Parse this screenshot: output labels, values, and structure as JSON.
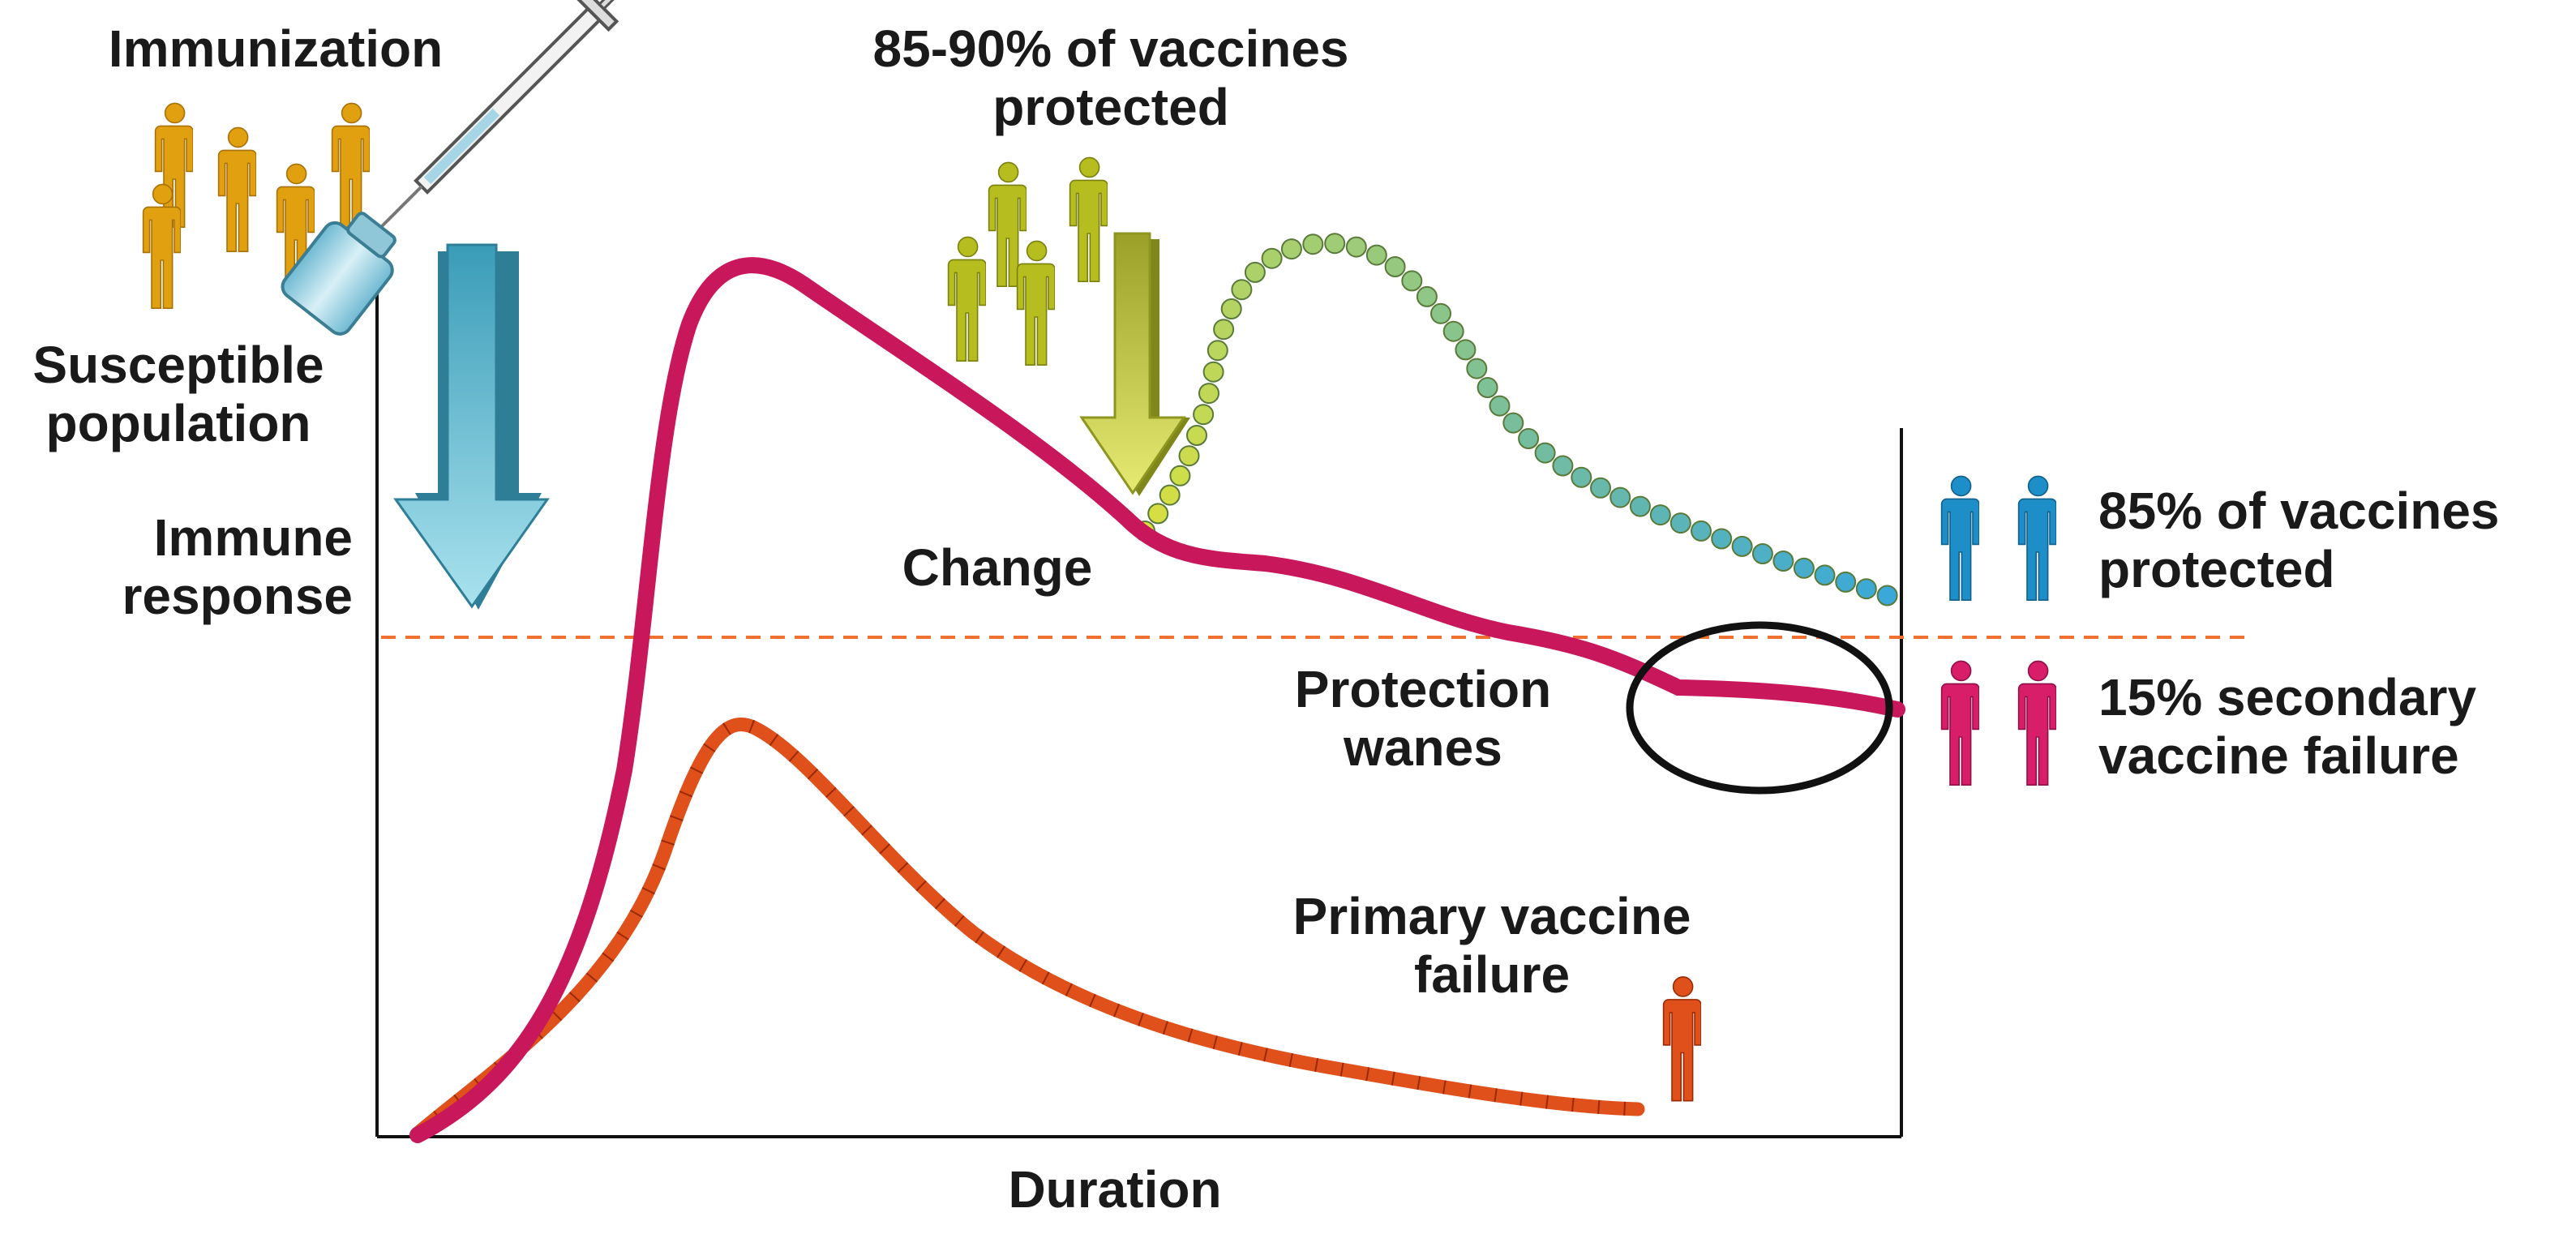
{
  "labels": {
    "immunization": "Immunization",
    "susceptible_population": [
      "Susceptible",
      "population"
    ],
    "immune_response": [
      "Immune",
      "response"
    ],
    "vaccines_protected_90": [
      "85-90% of vaccines",
      "protected"
    ],
    "change": "Change",
    "protection_wanes": [
      "Protection",
      "wanes"
    ],
    "primary_vaccine_failure": [
      "Primary vaccine",
      "failure"
    ],
    "vaccines_protected_85": [
      "85% of vaccines",
      "protected"
    ],
    "secondary_vaccine_failure": [
      "15% secondary",
      "vaccine failure"
    ],
    "duration": "Duration"
  },
  "colors": {
    "susceptible_people": "#E0A010",
    "protected_people": "#B5BE1E",
    "protected_85_people": "#1E8EC8",
    "secondary_failure_people": "#D81E68",
    "primary_failure_person": "#E0501A",
    "main_curve": "#C8175A",
    "primary_failure_curve": "#E0501A",
    "booster_curve_start": "#D8E040",
    "booster_curve_end": "#3AA8D8",
    "threshold_line": "#F07030",
    "arrow_blue": "#6CC4D8",
    "arrow_green": "#C8D040",
    "axes": "#111111"
  },
  "icons": [
    "syringe-icon",
    "vial-icon",
    "person-icon",
    "down-arrow-icon"
  ]
}
